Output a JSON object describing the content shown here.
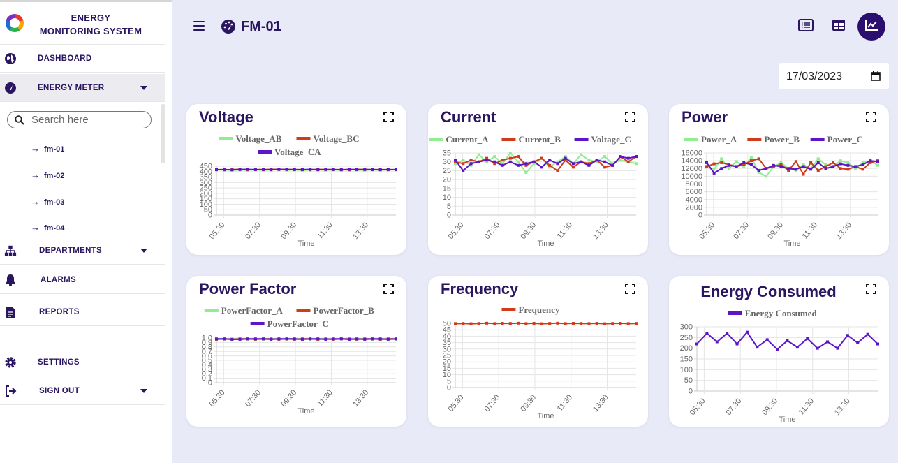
{
  "app": {
    "title_line1": "ENERGY",
    "title_line2": "MONITORING SYSTEM"
  },
  "sidebar": {
    "dashboard": "DASHBOARD",
    "energy_meter": "ENERGY METER",
    "search_placeholder": "Search here",
    "meters": [
      "fm-01",
      "fm-02",
      "fm-03",
      "fm-04"
    ],
    "departments": "DEPARTMENTS",
    "alarms": "ALARMS",
    "reports": "REPORTS",
    "settings": "SETTINGS",
    "sign_out": "SIGN OUT"
  },
  "header": {
    "title": "FM-01",
    "date": "17/03/2023"
  },
  "colors": {
    "primary": "#2a1660",
    "series_a": "#90ee90",
    "series_b": "#d03b1a",
    "series_c": "#5c16c8"
  },
  "charts": [
    {
      "title": "Voltage",
      "type": "line",
      "xlabel": "Time",
      "x_ticks": [
        "05:30",
        "07:30",
        "09:30",
        "11:30",
        "13:30"
      ],
      "y_ticks": [
        450,
        400,
        350,
        300,
        250,
        200,
        150,
        100,
        50,
        0
      ],
      "ylim": [
        0,
        450
      ],
      "series": [
        {
          "name": "Voltage_AB",
          "color": "#90ee90",
          "values": [
            415,
            418,
            412,
            416,
            414,
            417,
            413,
            415,
            419,
            414,
            416,
            412,
            415,
            417,
            413,
            416,
            414,
            418,
            415,
            413,
            416,
            414,
            417,
            415
          ]
        },
        {
          "name": "Voltage_BC",
          "color": "#d03b1a",
          "values": [
            420,
            416,
            419,
            421,
            417,
            420,
            418,
            422,
            419,
            421,
            418,
            420,
            417,
            421,
            419,
            418,
            420,
            416,
            421,
            419,
            418,
            420,
            417,
            420
          ]
        },
        {
          "name": "Voltage_CA",
          "color": "#5c16c8",
          "values": [
            418,
            420,
            416,
            419,
            421,
            418,
            420,
            417,
            421,
            419,
            420,
            418,
            421,
            417,
            420,
            419,
            417,
            421,
            418,
            420,
            419,
            417,
            420,
            418
          ]
        }
      ]
    },
    {
      "title": "Current",
      "type": "line",
      "xlabel": "Time",
      "x_ticks": [
        "05:30",
        "07:30",
        "09:30",
        "11:30",
        "13:30"
      ],
      "y_ticks": [
        35,
        30,
        25,
        20,
        15,
        10,
        5,
        0
      ],
      "ylim": [
        0,
        35
      ],
      "series": [
        {
          "name": "Current_A",
          "color": "#90ee90",
          "values": [
            29,
            31,
            28,
            34,
            30,
            33,
            29,
            35,
            30,
            24,
            29,
            32,
            27,
            30,
            33,
            29,
            34,
            31,
            30,
            33,
            29,
            31,
            30,
            29
          ]
        },
        {
          "name": "Current_B",
          "color": "#d03b1a",
          "values": [
            30,
            29,
            31,
            30,
            32,
            29,
            31,
            32,
            33,
            28,
            30,
            32,
            28,
            25,
            31,
            27,
            30,
            29,
            31,
            27,
            28,
            33,
            30,
            33
          ]
        },
        {
          "name": "Voltage_C",
          "color": "#5c16c8",
          "values": [
            31,
            25,
            29,
            30,
            31,
            30,
            28,
            30,
            28,
            29,
            30,
            27,
            31,
            29,
            32,
            29,
            30,
            28,
            31,
            30,
            28,
            33,
            32,
            33
          ]
        }
      ]
    },
    {
      "title": "Power",
      "type": "line",
      "xlabel": "Time",
      "x_ticks": [
        "05:30",
        "07:30",
        "09:30",
        "11:30",
        "13:30"
      ],
      "y_ticks": [
        16000,
        14000,
        12000,
        10000,
        8000,
        6000,
        4000,
        2000,
        0
      ],
      "ylim": [
        0,
        16000
      ],
      "series": [
        {
          "name": "Power_A",
          "color": "#90ee90",
          "values": [
            12500,
            11800,
            14500,
            12000,
            13800,
            12500,
            14800,
            11000,
            10000,
            12500,
            13500,
            12000,
            11500,
            13000,
            12000,
            14500,
            13000,
            12500,
            14000,
            13500,
            12000,
            13500,
            14000,
            12800
          ]
        },
        {
          "name": "Power_B",
          "color": "#d03b1a",
          "values": [
            12500,
            13200,
            13500,
            13000,
            12500,
            13000,
            14000,
            14500,
            12000,
            12500,
            13000,
            11500,
            13800,
            10500,
            13500,
            11500,
            12500,
            13500,
            12000,
            11800,
            12500,
            11800,
            13500,
            14000
          ]
        },
        {
          "name": "Power_C",
          "color": "#5c16c8",
          "values": [
            13500,
            10800,
            12000,
            12800,
            12500,
            13500,
            13000,
            11500,
            12000,
            12800,
            12500,
            12000,
            11800,
            12500,
            11800,
            13500,
            12000,
            12500,
            13200,
            12800,
            12500,
            13000,
            14000,
            13800
          ]
        }
      ]
    },
    {
      "title": "Power Factor",
      "type": "line",
      "xlabel": "Time",
      "x_ticks": [
        "05:30",
        "07:30",
        "09:30",
        "11:30",
        "13:30"
      ],
      "y_ticks": [
        "1.0",
        "0.9",
        "0.8",
        "0.7",
        "0.6",
        "0.5",
        "0.4",
        "0.3",
        "0.2",
        "0.1",
        "0"
      ],
      "ylim": [
        0,
        1.0
      ],
      "series": [
        {
          "name": "PowerFactor_A",
          "color": "#90ee90",
          "values": [
            0.98,
            0.97,
            0.98,
            0.98,
            0.97,
            0.98,
            0.97,
            0.98,
            0.98,
            0.97,
            0.98,
            0.98,
            0.97,
            0.98,
            0.98,
            0.97,
            0.98,
            0.97,
            0.98,
            0.98,
            0.97,
            0.98,
            0.98,
            0.97
          ]
        },
        {
          "name": "PowerFactor_B",
          "color": "#d03b1a",
          "values": [
            0.97,
            0.98,
            0.97,
            0.98,
            0.98,
            0.97,
            0.98,
            0.98,
            0.97,
            0.98,
            0.97,
            0.98,
            0.98,
            0.97,
            0.98,
            0.97,
            0.98,
            0.98,
            0.97,
            0.98,
            0.98,
            0.97,
            0.98,
            0.98
          ]
        },
        {
          "name": "PowerFactor_C",
          "color": "#5c16c8",
          "values": [
            0.98,
            0.98,
            0.97,
            0.97,
            0.98,
            0.98,
            0.98,
            0.97,
            0.98,
            0.98,
            0.98,
            0.97,
            0.98,
            0.98,
            0.97,
            0.98,
            0.98,
            0.97,
            0.98,
            0.97,
            0.98,
            0.98,
            0.97,
            0.98
          ]
        }
      ]
    },
    {
      "title": "Frequency",
      "type": "line",
      "xlabel": "Time",
      "x_ticks": [
        "05:30",
        "07:30",
        "09:30",
        "11:30",
        "13:30"
      ],
      "y_ticks": [
        50,
        45,
        40,
        35,
        30,
        25,
        20,
        15,
        10,
        5,
        0
      ],
      "ylim": [
        0,
        50
      ],
      "series": [
        {
          "name": "Frequency",
          "color": "#d03b1a",
          "values": [
            49.8,
            49.9,
            49.7,
            49.9,
            50.1,
            49.8,
            50.0,
            49.9,
            50.1,
            49.8,
            50.0,
            49.7,
            49.9,
            50.1,
            49.8,
            50.0,
            49.9,
            49.8,
            50.0,
            49.7,
            49.9,
            50.0,
            49.8,
            49.9
          ]
        }
      ]
    },
    {
      "title": "Energy Consumed",
      "type": "line",
      "xlabel": "Time",
      "x_ticks": [
        "05:30",
        "07:30",
        "09:30",
        "11:30",
        "13:30"
      ],
      "y_ticks": [
        300,
        250,
        200,
        150,
        100,
        50,
        0
      ],
      "ylim": [
        0,
        300
      ],
      "series": [
        {
          "name": "Energy Consumed",
          "color": "#5c16c8",
          "values": [
            220,
            270,
            230,
            270,
            220,
            275,
            205,
            240,
            195,
            235,
            205,
            245,
            200,
            230,
            200,
            260,
            225,
            265,
            220
          ]
        }
      ]
    }
  ]
}
